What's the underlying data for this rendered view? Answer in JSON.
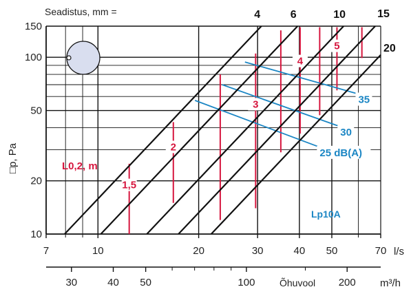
{
  "chart_data": {
    "type": "line",
    "header_label": "Seadistus, mm =",
    "ylabel": "□p, Pa",
    "x_bottom_label": "Õhuvool",
    "x_top_unit": "l/s",
    "x_bottom_unit": "m³/h",
    "y_scale": "log",
    "x_scale": "log",
    "ylim": [
      10,
      150
    ],
    "xlim_ls": [
      7,
      70
    ],
    "y_ticks": [
      {
        "value": 10,
        "label": "10"
      },
      {
        "value": 20,
        "label": "20"
      },
      {
        "value": 50,
        "label": "50"
      },
      {
        "value": 100,
        "label": "100"
      },
      {
        "value": 150,
        "label": "150"
      }
    ],
    "y_minor_ticks": [
      30,
      40,
      60,
      70,
      80,
      90
    ],
    "x_ticks_ls": [
      {
        "value": 7,
        "label": "7"
      },
      {
        "value": 10,
        "label": "10"
      },
      {
        "value": 20,
        "label": "20"
      },
      {
        "value": 30,
        "label": "30"
      },
      {
        "value": 40,
        "label": "40"
      },
      {
        "value": 50,
        "label": "50"
      },
      {
        "value": 70,
        "label": "70"
      }
    ],
    "x_minor_ticks_ls": [
      8,
      9,
      60
    ],
    "x_ticks_m3h": [
      {
        "value": 30,
        "label": "30"
      },
      {
        "value": 40,
        "label": "40"
      },
      {
        "value": 50,
        "label": "50"
      },
      {
        "value": 100,
        "label": "100"
      },
      {
        "value": 200,
        "label": "200"
      }
    ],
    "x_minor_ticks_m3h": [
      60,
      70,
      80,
      90,
      150
    ],
    "setting_lines": [
      {
        "label": "4",
        "x": 7.95,
        "y": 10
      },
      {
        "label": "6",
        "x": 10.2,
        "y": 10
      },
      {
        "label": "10",
        "x": 14.0,
        "y": 10
      },
      {
        "label": "15",
        "x": 17.4,
        "y": 10
      },
      {
        "label": "20",
        "x": 21.8,
        "y": 10
      }
    ],
    "setting_label_15_y": 150,
    "setting_label_20_y": 100,
    "throw_label": "L0,2, m",
    "throw_lines": [
      {
        "label": "1,5",
        "x": 12.4,
        "y_start": 10,
        "y_end": 25
      },
      {
        "label": "2",
        "x": 16.8,
        "y_start": 15,
        "y_end": 43
      },
      {
        "label": "",
        "x": 23.2,
        "y_start": 12,
        "y_end": 80
      },
      {
        "label": "3",
        "x": 29.6,
        "y_start": 14,
        "y_end": 105
      },
      {
        "label": "",
        "x": 35.2,
        "y_start": 29,
        "y_end": 142
      },
      {
        "label": "4",
        "x": 40.2,
        "y_start": 37,
        "y_end": 148
      },
      {
        "label": "",
        "x": 46.0,
        "y_start": 47,
        "y_end": 148
      },
      {
        "label": "5",
        "x": 51.8,
        "y_start": 65,
        "y_end": 148
      },
      {
        "label": "",
        "x": 61.5,
        "y_start": 99,
        "y_end": 148
      }
    ],
    "sound_label": "Lp10A",
    "sound_lines": [
      {
        "label": "25 dB(A)",
        "x1": 19.5,
        "y1": 57,
        "x2": 46.0,
        "y2": 31
      },
      {
        "label": "30",
        "x1": 23.5,
        "y1": 70,
        "x2": 53.0,
        "y2": 40.5
      },
      {
        "label": "35",
        "x1": 27.5,
        "y1": 94,
        "x2": 60.0,
        "y2": 62
      }
    ],
    "colors": {
      "setting_lines": "#111111",
      "throw": "#d6163e",
      "sound": "#1b86c4",
      "grid": "#111111",
      "inset_fill": "#d9deef"
    }
  }
}
